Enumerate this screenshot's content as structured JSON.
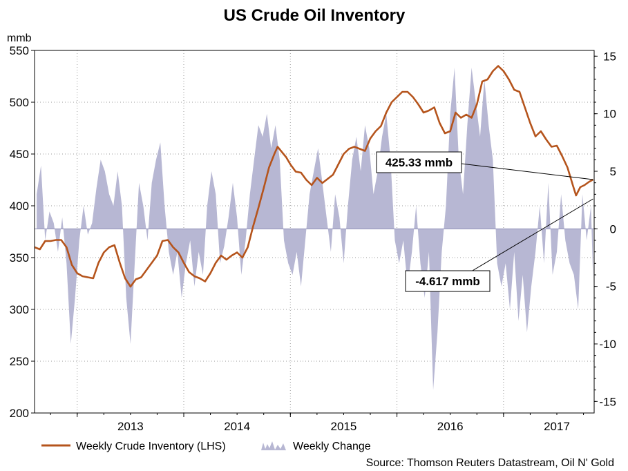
{
  "chart_data": {
    "type": "line",
    "title": "US Crude Oil Inventory",
    "left_axis": {
      "unit_label": "mmb",
      "range": [
        200,
        550
      ],
      "ticks": [
        "550",
        "500",
        "450",
        "400",
        "350",
        "300",
        "250",
        "200"
      ]
    },
    "right_axis": {
      "range": [
        -16,
        15.5
      ],
      "ticks": [
        "15",
        "10",
        "5",
        "0",
        "-5",
        "-10",
        "-15"
      ]
    },
    "x_axis": {
      "range": [
        2012.6,
        2017.85
      ],
      "year_labels": [
        "2013",
        "2014",
        "2015",
        "2016",
        "2017"
      ]
    },
    "series": [
      {
        "name": "Weekly Crude Inventory (LHS)",
        "axis": "left",
        "color": "#b5541c",
        "points": [
          [
            2012.6,
            360
          ],
          [
            2012.65,
            358
          ],
          [
            2012.7,
            366
          ],
          [
            2012.75,
            366
          ],
          [
            2012.8,
            367
          ],
          [
            2012.85,
            367
          ],
          [
            2012.9,
            360
          ],
          [
            2012.95,
            343
          ],
          [
            2013.0,
            335
          ],
          [
            2013.05,
            332
          ],
          [
            2013.1,
            331
          ],
          [
            2013.15,
            330
          ],
          [
            2013.2,
            345
          ],
          [
            2013.25,
            355
          ],
          [
            2013.3,
            360
          ],
          [
            2013.35,
            362
          ],
          [
            2013.4,
            345
          ],
          [
            2013.45,
            330
          ],
          [
            2013.5,
            322
          ],
          [
            2013.55,
            329
          ],
          [
            2013.6,
            331
          ],
          [
            2013.65,
            338
          ],
          [
            2013.7,
            345
          ],
          [
            2013.75,
            352
          ],
          [
            2013.8,
            366
          ],
          [
            2013.85,
            367
          ],
          [
            2013.9,
            360
          ],
          [
            2013.95,
            355
          ],
          [
            2014.0,
            345
          ],
          [
            2014.05,
            336
          ],
          [
            2014.1,
            332
          ],
          [
            2014.15,
            330
          ],
          [
            2014.2,
            327
          ],
          [
            2014.25,
            335
          ],
          [
            2014.3,
            345
          ],
          [
            2014.35,
            352
          ],
          [
            2014.4,
            348
          ],
          [
            2014.45,
            352
          ],
          [
            2014.5,
            355
          ],
          [
            2014.55,
            350
          ],
          [
            2014.6,
            360
          ],
          [
            2014.65,
            380
          ],
          [
            2014.7,
            398
          ],
          [
            2014.75,
            417
          ],
          [
            2014.8,
            437
          ],
          [
            2014.85,
            450
          ],
          [
            2014.88,
            457
          ],
          [
            2014.92,
            452
          ],
          [
            2014.96,
            447
          ],
          [
            2015.0,
            440
          ],
          [
            2015.05,
            433
          ],
          [
            2015.1,
            432
          ],
          [
            2015.15,
            425
          ],
          [
            2015.2,
            420
          ],
          [
            2015.25,
            427
          ],
          [
            2015.3,
            422
          ],
          [
            2015.35,
            426
          ],
          [
            2015.4,
            430
          ],
          [
            2015.45,
            440
          ],
          [
            2015.5,
            450
          ],
          [
            2015.55,
            455
          ],
          [
            2015.6,
            457
          ],
          [
            2015.65,
            455
          ],
          [
            2015.7,
            453
          ],
          [
            2015.75,
            465
          ],
          [
            2015.8,
            472
          ],
          [
            2015.85,
            477
          ],
          [
            2015.9,
            490
          ],
          [
            2015.95,
            500
          ],
          [
            2016.0,
            505
          ],
          [
            2016.05,
            510
          ],
          [
            2016.1,
            510
          ],
          [
            2016.15,
            505
          ],
          [
            2016.2,
            498
          ],
          [
            2016.25,
            490
          ],
          [
            2016.3,
            492
          ],
          [
            2016.35,
            495
          ],
          [
            2016.4,
            480
          ],
          [
            2016.45,
            470
          ],
          [
            2016.5,
            472
          ],
          [
            2016.55,
            490
          ],
          [
            2016.6,
            485
          ],
          [
            2016.65,
            488
          ],
          [
            2016.7,
            485
          ],
          [
            2016.75,
            498
          ],
          [
            2016.8,
            520
          ],
          [
            2016.85,
            522
          ],
          [
            2016.9,
            530
          ],
          [
            2016.95,
            535
          ],
          [
            2017.0,
            530
          ],
          [
            2017.05,
            522
          ],
          [
            2017.1,
            512
          ],
          [
            2017.15,
            510
          ],
          [
            2017.2,
            495
          ],
          [
            2017.25,
            480
          ],
          [
            2017.3,
            467
          ],
          [
            2017.35,
            472
          ],
          [
            2017.4,
            464
          ],
          [
            2017.45,
            457
          ],
          [
            2017.5,
            458
          ],
          [
            2017.55,
            448
          ],
          [
            2017.6,
            437
          ],
          [
            2017.65,
            420
          ],
          [
            2017.68,
            410
          ],
          [
            2017.72,
            418
          ],
          [
            2017.76,
            420
          ],
          [
            2017.8,
            423
          ],
          [
            2017.84,
            425.33
          ]
        ]
      },
      {
        "name": "Weekly Change",
        "axis": "right",
        "color": "#b7b7d3",
        "points": [
          [
            2012.62,
            3
          ],
          [
            2012.66,
            5.5
          ],
          [
            2012.7,
            -1
          ],
          [
            2012.74,
            1.5
          ],
          [
            2012.78,
            0.5
          ],
          [
            2012.82,
            -2
          ],
          [
            2012.86,
            1
          ],
          [
            2012.9,
            -3
          ],
          [
            2012.94,
            -10
          ],
          [
            2012.98,
            -6
          ],
          [
            2013.02,
            -1
          ],
          [
            2013.06,
            2
          ],
          [
            2013.1,
            -0.5
          ],
          [
            2013.14,
            0.5
          ],
          [
            2013.18,
            3.5
          ],
          [
            2013.22,
            6
          ],
          [
            2013.26,
            5
          ],
          [
            2013.3,
            3
          ],
          [
            2013.34,
            2
          ],
          [
            2013.38,
            5
          ],
          [
            2013.42,
            2
          ],
          [
            2013.46,
            -6
          ],
          [
            2013.5,
            -10
          ],
          [
            2013.54,
            -3
          ],
          [
            2013.58,
            4
          ],
          [
            2013.62,
            2
          ],
          [
            2013.66,
            -1
          ],
          [
            2013.7,
            4
          ],
          [
            2013.74,
            6
          ],
          [
            2013.78,
            7.5
          ],
          [
            2013.82,
            2
          ],
          [
            2013.86,
            -2
          ],
          [
            2013.9,
            -4
          ],
          [
            2013.94,
            -2
          ],
          [
            2013.98,
            -6
          ],
          [
            2014.02,
            -3
          ],
          [
            2014.06,
            -1
          ],
          [
            2014.1,
            -5
          ],
          [
            2014.14,
            -2
          ],
          [
            2014.18,
            -4
          ],
          [
            2014.22,
            2
          ],
          [
            2014.26,
            5
          ],
          [
            2014.3,
            3
          ],
          [
            2014.34,
            -3
          ],
          [
            2014.38,
            -1.5
          ],
          [
            2014.42,
            1
          ],
          [
            2014.46,
            4
          ],
          [
            2014.5,
            1
          ],
          [
            2014.54,
            -4
          ],
          [
            2014.58,
            -1
          ],
          [
            2014.62,
            3
          ],
          [
            2014.66,
            6
          ],
          [
            2014.7,
            9
          ],
          [
            2014.74,
            8
          ],
          [
            2014.78,
            10
          ],
          [
            2014.82,
            7
          ],
          [
            2014.86,
            9
          ],
          [
            2014.9,
            6
          ],
          [
            2014.94,
            -1
          ],
          [
            2014.98,
            -3
          ],
          [
            2015.02,
            -4
          ],
          [
            2015.06,
            -2
          ],
          [
            2015.1,
            -5
          ],
          [
            2015.14,
            -1
          ],
          [
            2015.18,
            3
          ],
          [
            2015.22,
            5
          ],
          [
            2015.26,
            7
          ],
          [
            2015.3,
            4
          ],
          [
            2015.34,
            1
          ],
          [
            2015.38,
            -2
          ],
          [
            2015.42,
            3
          ],
          [
            2015.46,
            1
          ],
          [
            2015.5,
            -3
          ],
          [
            2015.54,
            2
          ],
          [
            2015.58,
            6
          ],
          [
            2015.62,
            8
          ],
          [
            2015.66,
            5
          ],
          [
            2015.7,
            9
          ],
          [
            2015.74,
            7
          ],
          [
            2015.78,
            3
          ],
          [
            2015.82,
            5
          ],
          [
            2015.86,
            8
          ],
          [
            2015.9,
            10
          ],
          [
            2015.94,
            6
          ],
          [
            2015.98,
            -1
          ],
          [
            2016.02,
            -3
          ],
          [
            2016.06,
            -1
          ],
          [
            2016.1,
            -5
          ],
          [
            2016.14,
            -2
          ],
          [
            2016.18,
            2
          ],
          [
            2016.22,
            -3
          ],
          [
            2016.26,
            -6
          ],
          [
            2016.3,
            -2
          ],
          [
            2016.34,
            -14
          ],
          [
            2016.38,
            -9
          ],
          [
            2016.42,
            -2
          ],
          [
            2016.46,
            2
          ],
          [
            2016.5,
            10
          ],
          [
            2016.54,
            14
          ],
          [
            2016.58,
            6
          ],
          [
            2016.62,
            3
          ],
          [
            2016.66,
            9
          ],
          [
            2016.7,
            14
          ],
          [
            2016.74,
            11
          ],
          [
            2016.78,
            8
          ],
          [
            2016.82,
            13
          ],
          [
            2016.86,
            9
          ],
          [
            2016.9,
            6
          ],
          [
            2016.94,
            -3
          ],
          [
            2016.98,
            -5
          ],
          [
            2017.02,
            -3
          ],
          [
            2017.06,
            -7
          ],
          [
            2017.1,
            -2
          ],
          [
            2017.14,
            -8
          ],
          [
            2017.18,
            -4
          ],
          [
            2017.22,
            -9
          ],
          [
            2017.26,
            -5
          ],
          [
            2017.3,
            -2
          ],
          [
            2017.34,
            2
          ],
          [
            2017.38,
            -3
          ],
          [
            2017.42,
            4
          ],
          [
            2017.46,
            -4
          ],
          [
            2017.5,
            -2
          ],
          [
            2017.54,
            3
          ],
          [
            2017.58,
            -1
          ],
          [
            2017.62,
            -3
          ],
          [
            2017.66,
            -4
          ],
          [
            2017.7,
            -7
          ],
          [
            2017.74,
            3
          ],
          [
            2017.78,
            -1
          ],
          [
            2017.82,
            2
          ],
          [
            2017.84,
            -4.617
          ]
        ]
      }
    ],
    "annotations": [
      {
        "text": "425.33 mmb",
        "points_to": [
          2017.84,
          425.33
        ],
        "axis": "left"
      },
      {
        "text": "-4.617 mmb",
        "points_to": [
          2017.84,
          2.6
        ],
        "axis": "right"
      }
    ],
    "legend": {
      "position": "bottom-left",
      "items": [
        "Weekly Crude Inventory (LHS)",
        "Weekly Change"
      ]
    },
    "source": "Source: Thomson Reuters Datastream, Oil N' Gold",
    "grid": true
  }
}
